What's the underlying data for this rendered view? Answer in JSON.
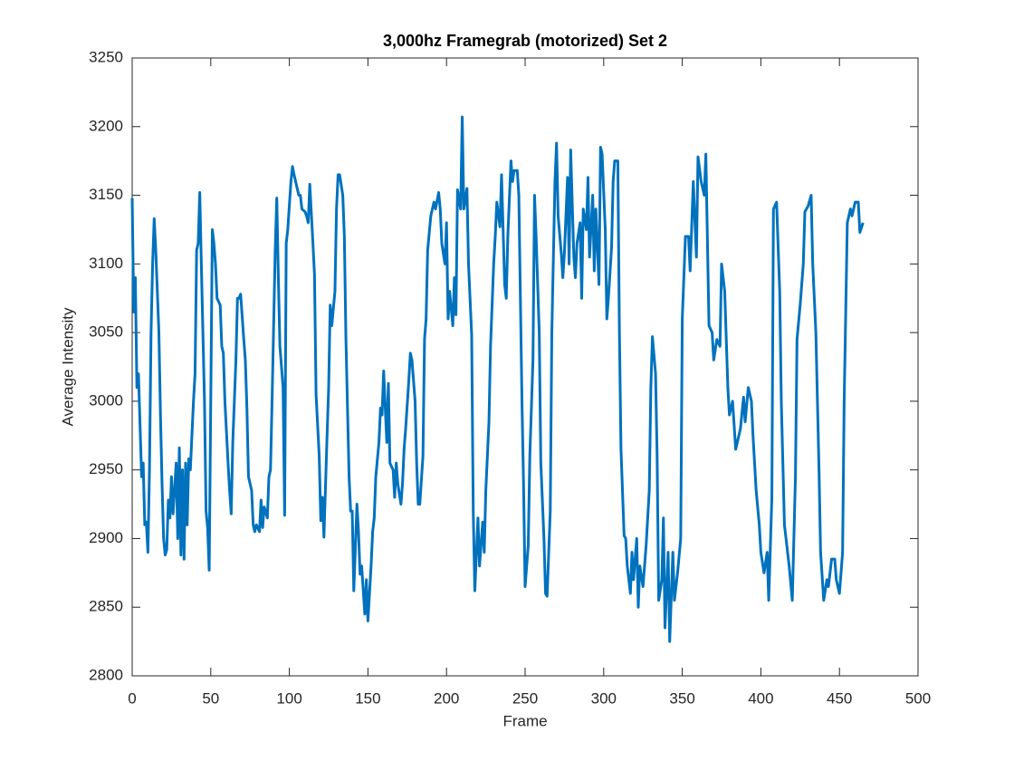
{
  "chart_data": {
    "type": "line",
    "title": "3,000hz Framegrab (motorized) Set 2",
    "xlabel": "Frame",
    "ylabel": "Average Intensity",
    "color": "#0072bd",
    "grid": false,
    "xlim": [
      0,
      500
    ],
    "xticks": [
      0,
      50,
      100,
      150,
      200,
      250,
      300,
      350,
      400,
      450,
      500
    ],
    "ylim": [
      2800,
      3250
    ],
    "yticks": [
      2800,
      2850,
      2900,
      2950,
      3000,
      3050,
      3100,
      3150,
      3200,
      3250
    ],
    "x": [
      0,
      1,
      2,
      3,
      4,
      6,
      7,
      8,
      9,
      10,
      11,
      12,
      13,
      14,
      15,
      17,
      18,
      19,
      20,
      21,
      22,
      23,
      24,
      25,
      26,
      28,
      29,
      30,
      31,
      32,
      33,
      34,
      35,
      36,
      37,
      39,
      40,
      41,
      42,
      43,
      44,
      46,
      47,
      48,
      49,
      51,
      52,
      53,
      54,
      56,
      57,
      58,
      59,
      61,
      62,
      63,
      64,
      66,
      67,
      68,
      69,
      71,
      72,
      73,
      74,
      76,
      77,
      78,
      79,
      81,
      82,
      83,
      84,
      86,
      87,
      88,
      89,
      91,
      92,
      93,
      94,
      96,
      97,
      98,
      99,
      101,
      102,
      103,
      105,
      106,
      107,
      108,
      110,
      111,
      112,
      113,
      115,
      116,
      117,
      119,
      120,
      121,
      122,
      124,
      125,
      126,
      127,
      129,
      130,
      131,
      132,
      134,
      135,
      136,
      138,
      139,
      140,
      141,
      143,
      144,
      145,
      146,
      148,
      149,
      150,
      152,
      153,
      154,
      155,
      157,
      158,
      159,
      160,
      162,
      163,
      164,
      166,
      167,
      168,
      169,
      171,
      172,
      173,
      174,
      176,
      177,
      178,
      180,
      181,
      182,
      183,
      185,
      186,
      187,
      188,
      190,
      191,
      192,
      193,
      195,
      196,
      197,
      199,
      200,
      201,
      202,
      204,
      205,
      206,
      207,
      209,
      210,
      211,
      213,
      214,
      216,
      217,
      218,
      220,
      221,
      223,
      224,
      225,
      227,
      228,
      230,
      231,
      232,
      234,
      235,
      237,
      238,
      239,
      241,
      242,
      243,
      245,
      246,
      248,
      249,
      250,
      252,
      253,
      255,
      256,
      257,
      259,
      260,
      262,
      263,
      264,
      266,
      267,
      269,
      270,
      271,
      273,
      274,
      275,
      277,
      278,
      279,
      281,
      282,
      283,
      285,
      286,
      287,
      289,
      290,
      291,
      293,
      294,
      295,
      297,
      298,
      299,
      301,
      302,
      303,
      305,
      306,
      307,
      309,
      310,
      311,
      313,
      314,
      315,
      317,
      318,
      319,
      321,
      322,
      323,
      325,
      326,
      327,
      329,
      330,
      331,
      333,
      334,
      335,
      337,
      338,
      339,
      341,
      342,
      344,
      345,
      347,
      349,
      350,
      352,
      354,
      355,
      357,
      359,
      360,
      362,
      364,
      365,
      367,
      369,
      370,
      372,
      374,
      375,
      377,
      379,
      380,
      382,
      384,
      385,
      387,
      389,
      390,
      392,
      394,
      395,
      397,
      399,
      400,
      402,
      404,
      405,
      407,
      408,
      410,
      412,
      413,
      415,
      417,
      418,
      420,
      422,
      423,
      425,
      427,
      428,
      430,
      432,
      433,
      435,
      437,
      438,
      440,
      442,
      443,
      445,
      447,
      448,
      450,
      452,
      453,
      455,
      457,
      458,
      460,
      462,
      463,
      465
    ],
    "values": [
      3148,
      3065,
      3090,
      3010,
      3020,
      2945,
      2955,
      2910,
      2912,
      2890,
      2950,
      3050,
      3100,
      3133,
      3110,
      3050,
      2990,
      2940,
      2900,
      2888,
      2892,
      2928,
      2915,
      2945,
      2918,
      2955,
      2900,
      2966,
      2888,
      2950,
      2885,
      2955,
      2910,
      2958,
      2950,
      3000,
      3020,
      3110,
      3115,
      3152,
      3100,
      3000,
      2920,
      2908,
      2877,
      3125,
      3115,
      3100,
      3075,
      3070,
      3040,
      3035,
      3000,
      2955,
      2935,
      2918,
      2970,
      3030,
      3075,
      3075,
      3078,
      3045,
      3030,
      2995,
      2945,
      2935,
      2910,
      2905,
      2910,
      2905,
      2928,
      2908,
      2923,
      2915,
      2945,
      2950,
      3000,
      3110,
      3148,
      3090,
      3040,
      3010,
      2917,
      3115,
      3125,
      3160,
      3171,
      3165,
      3155,
      3150,
      3150,
      3140,
      3138,
      3135,
      3130,
      3158,
      3115,
      3092,
      3005,
      2960,
      2913,
      2930,
      2901,
      2975,
      3010,
      3070,
      3055,
      3080,
      3140,
      3165,
      3165,
      3150,
      3120,
      3045,
      2945,
      2920,
      2920,
      2862,
      2925,
      2905,
      2874,
      2880,
      2845,
      2870,
      2840,
      2880,
      2905,
      2915,
      2945,
      2970,
      2995,
      2990,
      3022,
      2970,
      3013,
      2955,
      2950,
      2930,
      2955,
      2940,
      2925,
      2940,
      2965,
      2980,
      3015,
      3035,
      3030,
      3000,
      2955,
      2925,
      2925,
      2960,
      3045,
      3060,
      3110,
      3135,
      3140,
      3145,
      3140,
      3152,
      3140,
      3115,
      3100,
      3130,
      3060,
      3080,
      3055,
      3090,
      3063,
      3154,
      3140,
      3207,
      3140,
      3155,
      3100,
      3048,
      2920,
      2862,
      2915,
      2880,
      2912,
      2890,
      2935,
      2985,
      3040,
      3100,
      3120,
      3145,
      3127,
      3165,
      3085,
      3075,
      3120,
      3175,
      3160,
      3168,
      3168,
      3150,
      3000,
      2940,
      2865,
      2895,
      2960,
      3030,
      3150,
      3120,
      3050,
      2955,
      2900,
      2860,
      2858,
      2920,
      3050,
      3160,
      3188,
      3135,
      3108,
      3090,
      3108,
      3163,
      3100,
      3183,
      3105,
      3090,
      3115,
      3130,
      3075,
      3140,
      3125,
      3163,
      3105,
      3150,
      3095,
      3140,
      3085,
      3185,
      3180,
      3125,
      3060,
      3075,
      3112,
      3160,
      3175,
      3175,
      3050,
      2965,
      2902,
      2900,
      2880,
      2860,
      2890,
      2870,
      2900,
      2850,
      2880,
      2865,
      2880,
      2895,
      2935,
      3010,
      3047,
      3020,
      2960,
      2855,
      2870,
      2915,
      2835,
      2890,
      2825,
      2890,
      2855,
      2875,
      2900,
      3060,
      3120,
      3120,
      3095,
      3160,
      3105,
      3178,
      3160,
      3150,
      3180,
      3055,
      3050,
      3030,
      3045,
      3040,
      3100,
      3080,
      3010,
      2990,
      3000,
      2965,
      2970,
      2980,
      3003,
      2985,
      3010,
      3000,
      2975,
      2935,
      2910,
      2890,
      2875,
      2890,
      2855,
      2930,
      3140,
      3145,
      3080,
      3000,
      2910,
      2890,
      2880,
      2855,
      2945,
      3045,
      3070,
      3100,
      3138,
      3142,
      3150,
      3100,
      3050,
      2950,
      2890,
      2855,
      2870,
      2865,
      2885,
      2885,
      2870,
      2860,
      2890,
      3000,
      3130,
      3140,
      3135,
      3145,
      3145,
      3123,
      3130
    ]
  }
}
